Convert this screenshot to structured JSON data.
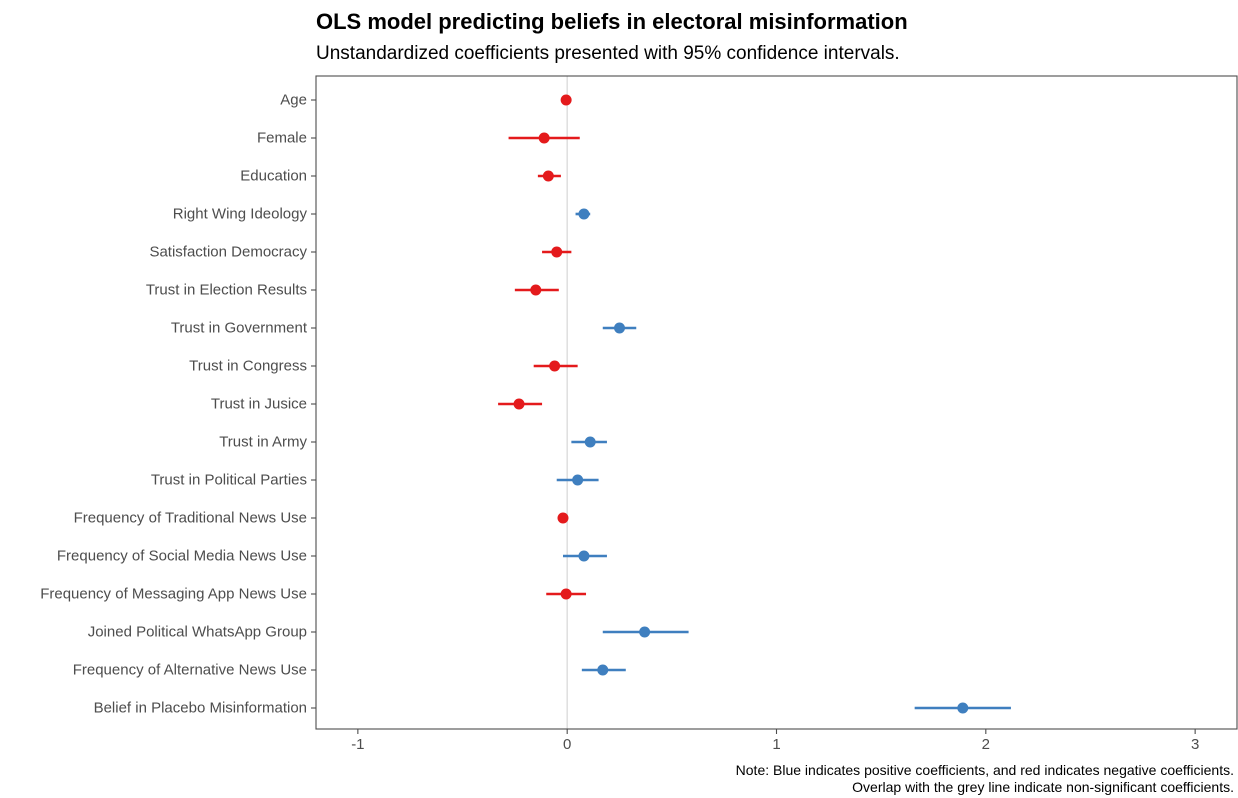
{
  "chart_data": {
    "type": "scatter",
    "subtype": "coefficient-plot",
    "title": "OLS model predicting beliefs in electoral misinformation",
    "subtitle": "Unstandardized coefficients presented with 95% confidence intervals.",
    "caption": [
      "Note: Blue indicates positive coefficients, and red indicates negative coefficients.",
      "Overlap with the grey line indicate non-significant coefficients."
    ],
    "xlim": [
      -1.2,
      3.2
    ],
    "x_ticks": [
      -1,
      0,
      1,
      2,
      3
    ],
    "x_tick_labels": [
      "-1",
      "0",
      "1",
      "2",
      "3"
    ],
    "reference_line": 0,
    "grid": false,
    "colors": {
      "positive": "#3f7fbf",
      "negative": "#e41a1c",
      "reference": "#d9d9d9",
      "axis": "#4d4d4d"
    },
    "points": [
      {
        "label": "Age",
        "estimate": -0.005,
        "lower": -0.015,
        "upper": 0.005
      },
      {
        "label": "Female",
        "estimate": -0.11,
        "lower": -0.28,
        "upper": 0.06
      },
      {
        "label": "Education",
        "estimate": -0.09,
        "lower": -0.14,
        "upper": -0.03
      },
      {
        "label": "Right Wing Ideology",
        "estimate": 0.08,
        "lower": 0.04,
        "upper": 0.11
      },
      {
        "label": "Satisfaction Democracy",
        "estimate": -0.05,
        "lower": -0.12,
        "upper": 0.02
      },
      {
        "label": "Trust in Election Results",
        "estimate": -0.15,
        "lower": -0.25,
        "upper": -0.04
      },
      {
        "label": "Trust in Government",
        "estimate": 0.25,
        "lower": 0.17,
        "upper": 0.33
      },
      {
        "label": "Trust in Congress",
        "estimate": -0.06,
        "lower": -0.16,
        "upper": 0.05
      },
      {
        "label": "Trust in Jusice",
        "estimate": -0.23,
        "lower": -0.33,
        "upper": -0.12
      },
      {
        "label": "Trust in Army",
        "estimate": 0.11,
        "lower": 0.02,
        "upper": 0.19
      },
      {
        "label": "Trust in Political Parties",
        "estimate": 0.05,
        "lower": -0.05,
        "upper": 0.15
      },
      {
        "label": "Frequency of Traditional News Use",
        "estimate": -0.02,
        "lower": -0.04,
        "upper": 0.0
      },
      {
        "label": "Frequency of Social Media News Use",
        "estimate": 0.08,
        "lower": -0.02,
        "upper": 0.19
      },
      {
        "label": "Frequency of Messaging App News Use",
        "estimate": -0.005,
        "lower": -0.1,
        "upper": 0.09
      },
      {
        "label": "Joined Political WhatsApp Group",
        "estimate": 0.37,
        "lower": 0.17,
        "upper": 0.58
      },
      {
        "label": "Frequency of Alternative News Use",
        "estimate": 0.17,
        "lower": 0.07,
        "upper": 0.28
      },
      {
        "label": "Belief in Placebo Misinformation",
        "estimate": 1.89,
        "lower": 1.66,
        "upper": 2.12
      }
    ]
  }
}
